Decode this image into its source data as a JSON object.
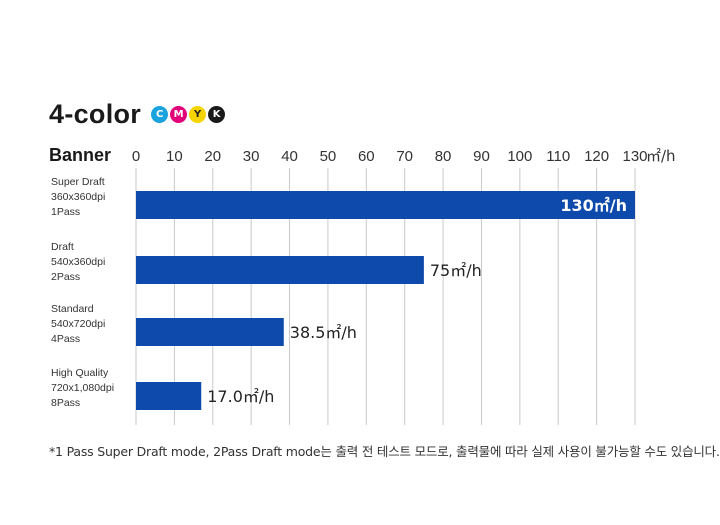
{
  "header": {
    "title": "4-color",
    "inks": [
      {
        "letter": "C",
        "color": "#1aa3dc",
        "dark": false
      },
      {
        "letter": "M",
        "color": "#e2007a",
        "dark": false
      },
      {
        "letter": "Y",
        "color": "#f5d400",
        "dark": true
      },
      {
        "letter": "K",
        "color": "#1a1a1a",
        "dark": false
      }
    ]
  },
  "chart_data": {
    "type": "bar",
    "orientation": "horizontal",
    "axis_title": "Banner",
    "unit_label": "㎡/h",
    "xlim": [
      0,
      130
    ],
    "ticks": [
      0,
      10,
      20,
      30,
      40,
      50,
      60,
      70,
      80,
      90,
      100,
      110,
      120,
      130
    ],
    "grid": true,
    "bar_color": "#0e4aab",
    "categories": [
      [
        "Super Draft",
        "360x360dpi",
        "1Pass"
      ],
      [
        "Draft",
        "540x360dpi",
        "2Pass"
      ],
      [
        "Standard",
        "540x720dpi",
        "4Pass"
      ],
      [
        "High Quality",
        "720x1,080dpi",
        "8Pass"
      ]
    ],
    "values": [
      130,
      75,
      38.5,
      17.0
    ],
    "value_labels": [
      "130㎡/h",
      "75㎡/h",
      "38.5㎡/h",
      "17.0㎡/h"
    ]
  },
  "footnote": "*1 Pass Super Draft mode, 2Pass Draft mode는 출력 전 테스트 모드로, 출력물에 따라 실제 사용이 불가능할 수도 있습니다."
}
